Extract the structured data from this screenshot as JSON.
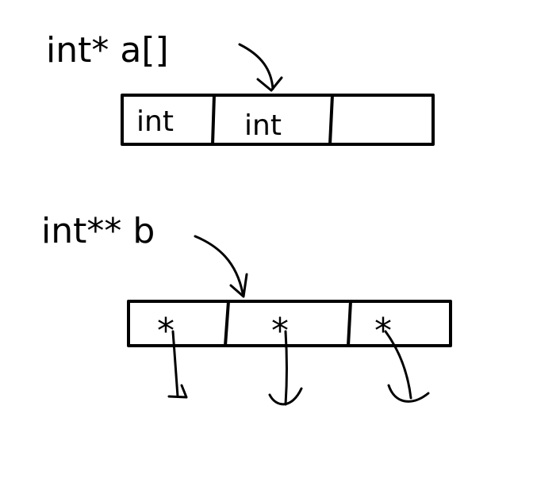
{
  "diagram": {
    "arrays": [
      {
        "declaration": "int* a[]",
        "cells": [
          "int",
          "int",
          ""
        ]
      },
      {
        "declaration": "int** b",
        "cells": [
          "*",
          "*",
          "*"
        ]
      }
    ],
    "colors": {
      "ink": "#000000",
      "background": "#ffffff"
    }
  }
}
